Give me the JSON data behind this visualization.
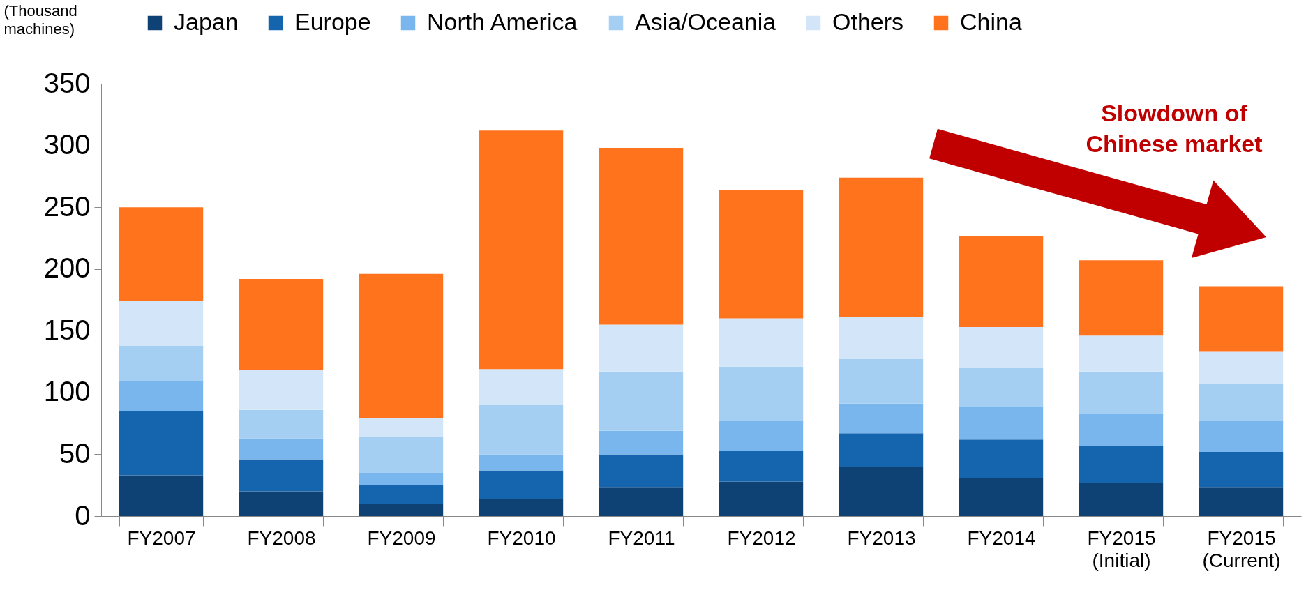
{
  "chart_data": {
    "type": "bar",
    "stacked": true,
    "ylabel": "(Thousand machines)",
    "categories": [
      "FY2007",
      "FY2008",
      "FY2009",
      "FY2010",
      "FY2011",
      "FY2012",
      "FY2013",
      "FY2014",
      "FY2015\n(Initial)",
      "FY2015\n(Current)"
    ],
    "series": [
      {
        "name": "Japan",
        "color": "#0e4174",
        "values": [
          33,
          20,
          10,
          14,
          23,
          28,
          40,
          31,
          27,
          23
        ]
      },
      {
        "name": "Europe",
        "color": "#1464ae",
        "values": [
          52,
          26,
          15,
          23,
          27,
          25,
          27,
          31,
          30,
          29
        ]
      },
      {
        "name": "North America",
        "color": "#7ab6ee",
        "values": [
          24,
          17,
          10,
          13,
          19,
          24,
          24,
          26,
          26,
          25
        ]
      },
      {
        "name": "Asia/Oceania",
        "color": "#a5cef3",
        "values": [
          29,
          23,
          29,
          40,
          48,
          44,
          36,
          32,
          34,
          30
        ]
      },
      {
        "name": "Others",
        "color": "#d3e6f9",
        "values": [
          36,
          32,
          15,
          29,
          38,
          39,
          34,
          33,
          29,
          26
        ]
      },
      {
        "name": "China",
        "color": "#ff731d",
        "values": [
          76,
          74,
          117,
          193,
          143,
          104,
          113,
          74,
          61,
          53
        ]
      }
    ],
    "ylim": [
      0,
      350
    ],
    "yticks": [
      0,
      50,
      100,
      150,
      200,
      250,
      300,
      350
    ],
    "grid": false,
    "legend": "top",
    "annotations": [
      "Slowdown of Chinese market"
    ]
  }
}
